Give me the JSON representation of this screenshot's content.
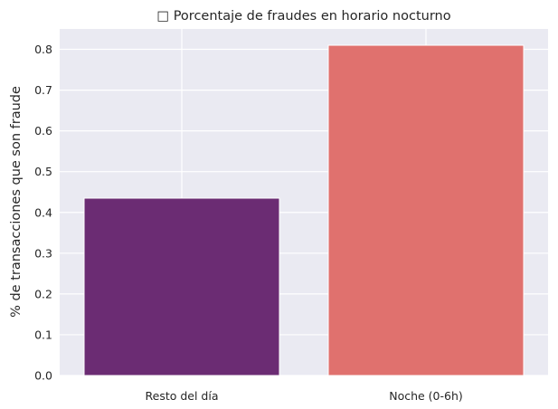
{
  "chart_data": {
    "type": "bar",
    "title": "□ Porcentaje de fraudes en horario nocturno",
    "xlabel": "",
    "ylabel": "% de transacciones que son fraude",
    "categories": [
      "Resto del día",
      "Noche (0-6h)"
    ],
    "values": [
      0.435,
      0.81
    ],
    "colors": [
      "#6b2c73",
      "#e0716e"
    ],
    "ylim": [
      0,
      0.85
    ],
    "yticks": [
      0.0,
      0.1,
      0.2,
      0.3,
      0.4,
      0.5,
      0.6,
      0.7,
      0.8
    ],
    "ytick_labels": [
      "0.0",
      "0.1",
      "0.2",
      "0.3",
      "0.4",
      "0.5",
      "0.6",
      "0.7",
      "0.8"
    ],
    "grid": true,
    "background": "#eaeaf2",
    "grid_color": "#ffffff"
  }
}
